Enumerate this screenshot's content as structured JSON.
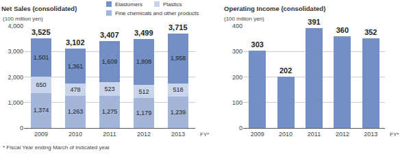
{
  "note": "* Fiscal Year ending March of indicated year",
  "chart_data": [
    {
      "type": "bar",
      "title": "Net Sales (consolidated)",
      "y_label": "(100 million yen)",
      "x_label": "FY*",
      "categories": [
        "2009",
        "2010",
        "2011",
        "2012",
        "2013"
      ],
      "stacked": true,
      "data_labels": true,
      "grid": true,
      "legend": "top",
      "series": [
        {
          "name": "Elastomers",
          "color": "#7390c6",
          "values": [
            1501,
            1361,
            1609,
            1808,
            1958
          ],
          "value_labels": [
            "1,501",
            "1,361",
            "1,609",
            "1,808",
            "1,958"
          ]
        },
        {
          "name": "Plastics",
          "color": "#c8d4ea",
          "values": [
            650,
            478,
            523,
            512,
            518
          ],
          "value_labels": [
            "650",
            "478",
            "523",
            "512",
            "518"
          ]
        },
        {
          "name": "Fine chemicals and other products",
          "color": "#a3b5d9",
          "values": [
            1374,
            1263,
            1275,
            1179,
            1239
          ],
          "value_labels": [
            "1,374",
            "1,263",
            "1,275",
            "1,179",
            "1,239"
          ]
        }
      ],
      "totals": [
        3525,
        3102,
        3407,
        3499,
        3715
      ],
      "total_labels": [
        "3,525",
        "3,102",
        "3,407",
        "3,499",
        "3,715"
      ],
      "ylim": [
        0,
        4000
      ],
      "yticks": [
        0,
        {
          "value": 1000,
          "label": "1,000"
        },
        {
          "value": 2000,
          "label": "2,000"
        },
        {
          "value": 3000,
          "label": "3,000"
        },
        {
          "value": 4000,
          "label": "4,000"
        }
      ]
    },
    {
      "type": "bar",
      "title": "Operating Income (consolidated)",
      "y_label": "(100 million yen)",
      "x_label": "FY*",
      "categories": [
        "2009",
        "2010",
        "2011",
        "2012",
        "2013"
      ],
      "data_labels": true,
      "grid": true,
      "color": "#7390c6",
      "values": [
        303,
        202,
        391,
        360,
        352
      ],
      "ylim": [
        0,
        400
      ],
      "yticks": [
        0,
        100,
        200,
        300,
        400
      ]
    }
  ]
}
